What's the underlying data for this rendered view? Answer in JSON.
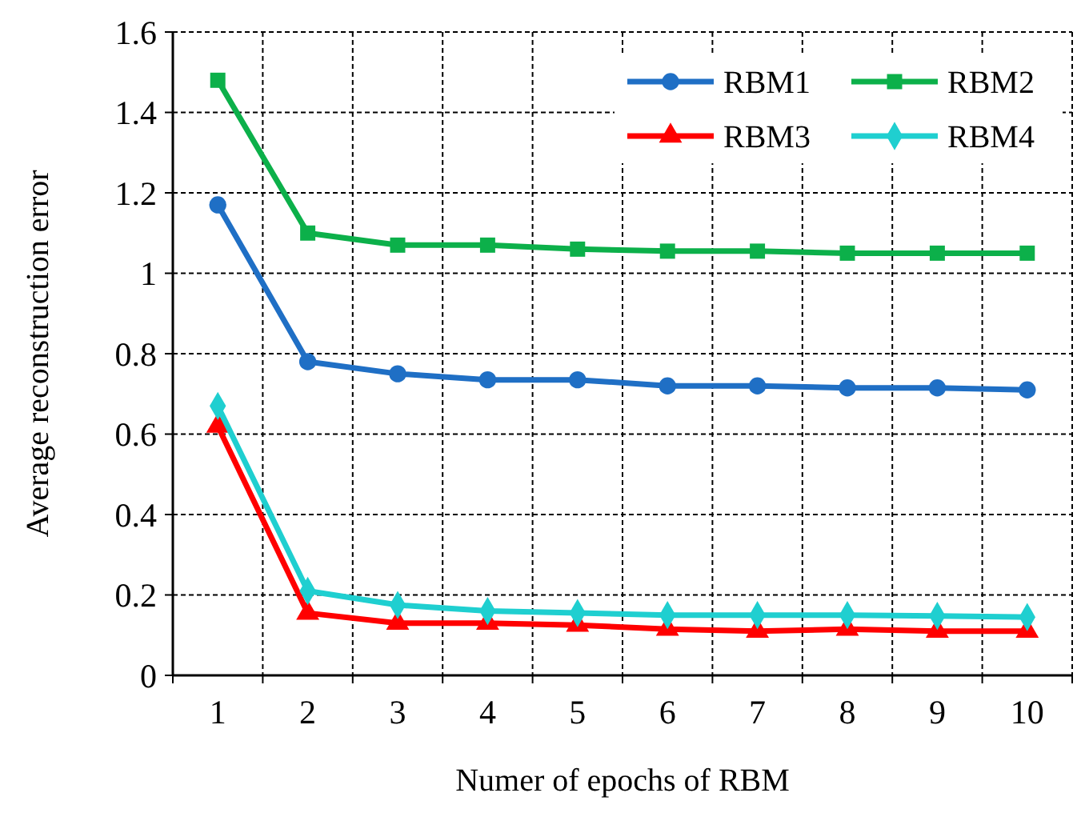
{
  "chart_data": {
    "type": "line",
    "xlabel": "Numer of epochs of RBM",
    "ylabel": "Average reconstruction error",
    "categories": [
      "1",
      "2",
      "3",
      "4",
      "5",
      "6",
      "7",
      "8",
      "9",
      "10"
    ],
    "series": [
      {
        "name": "RBM1",
        "color": "#1f6fc5",
        "marker": "circle",
        "values": [
          1.17,
          0.78,
          0.75,
          0.735,
          0.735,
          0.72,
          0.72,
          0.715,
          0.715,
          0.71
        ]
      },
      {
        "name": "RBM2",
        "color": "#0cb04a",
        "marker": "square",
        "values": [
          1.48,
          1.1,
          1.07,
          1.07,
          1.06,
          1.055,
          1.055,
          1.05,
          1.05,
          1.05
        ]
      },
      {
        "name": "RBM3",
        "color": "#ff0000",
        "marker": "triangle",
        "values": [
          0.62,
          0.155,
          0.13,
          0.13,
          0.125,
          0.115,
          0.11,
          0.115,
          0.11,
          0.11
        ]
      },
      {
        "name": "RBM4",
        "color": "#1fcfd0",
        "marker": "diamond",
        "values": [
          0.67,
          0.21,
          0.175,
          0.16,
          0.155,
          0.15,
          0.15,
          0.15,
          0.148,
          0.145
        ]
      }
    ],
    "ylim": [
      0,
      1.6
    ],
    "yticks": [
      0,
      0.2,
      0.4,
      0.6,
      0.8,
      1,
      1.2,
      1.4,
      1.6
    ],
    "grid": true,
    "legend": "top right",
    "line_style": "solid"
  }
}
